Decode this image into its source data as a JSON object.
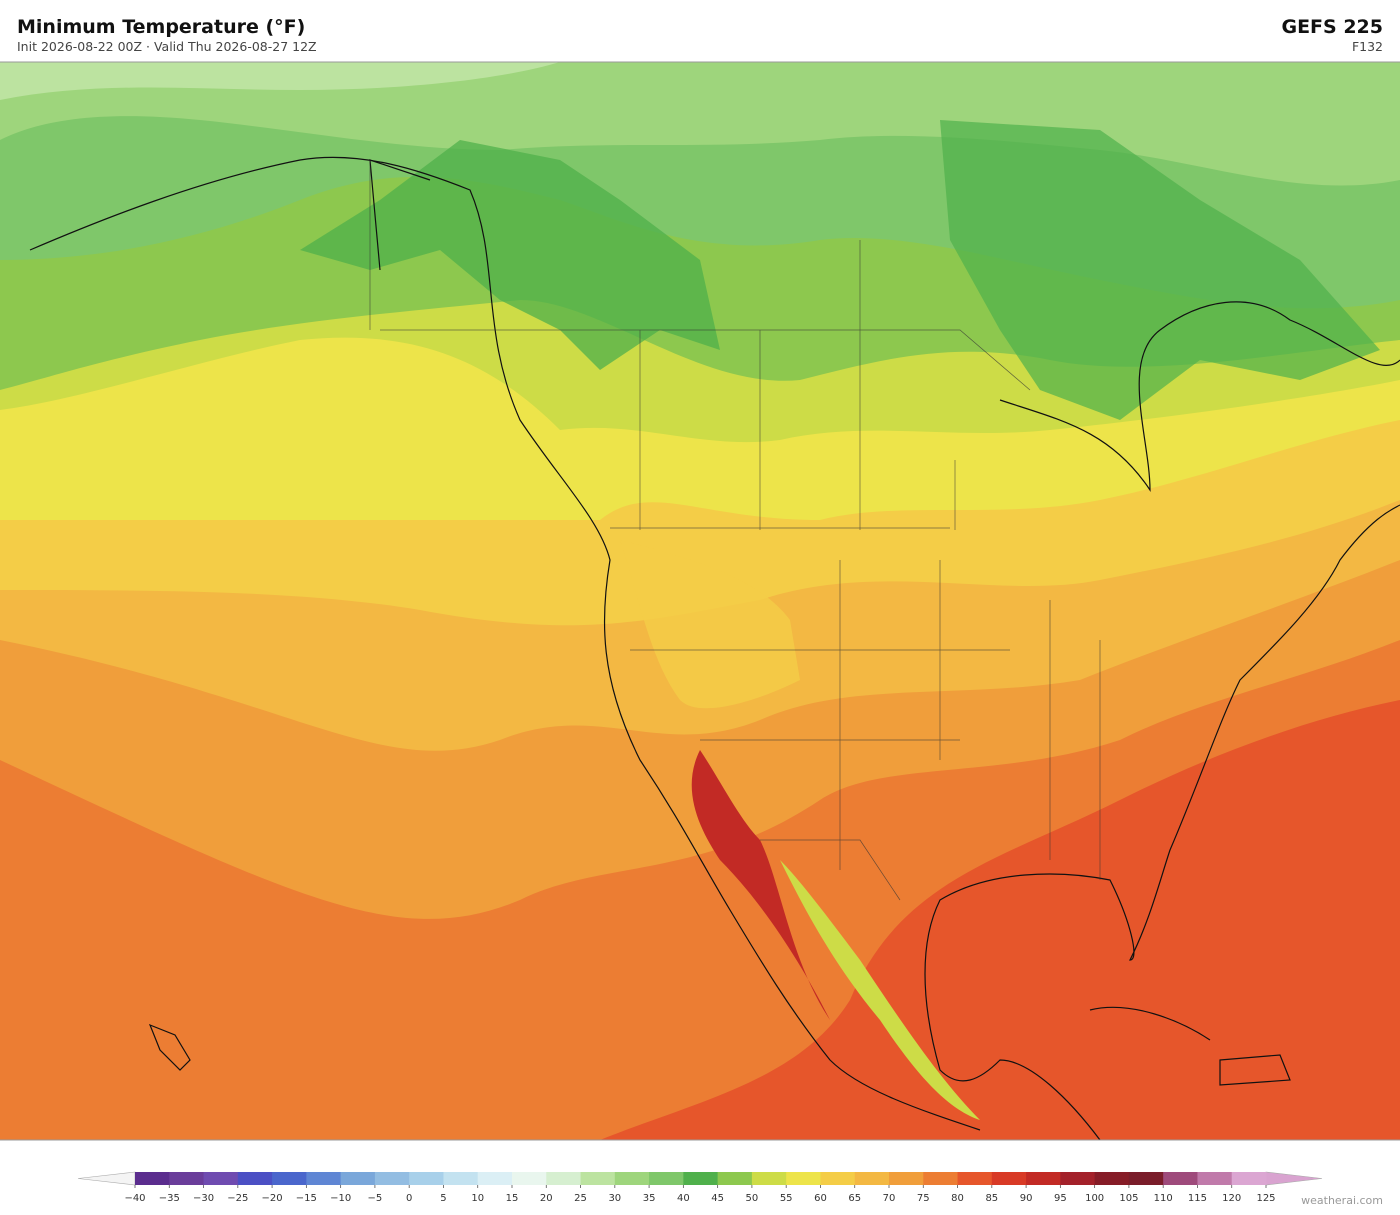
{
  "header": {
    "title": "Minimum Temperature  (°F)",
    "subtitle": "Init 2026-08-22 00Z  ·  Valid Thu 2026-08-27 12Z",
    "model": "GEFS  225",
    "forecast_hour": "F132"
  },
  "colorbar": {
    "ticks": [
      {
        "value": -40,
        "label": "−40"
      },
      {
        "value": -35,
        "label": "−35"
      },
      {
        "value": -30,
        "label": "−30"
      },
      {
        "value": -25,
        "label": "−25"
      },
      {
        "value": -20,
        "label": "−20"
      },
      {
        "value": -15,
        "label": "−15"
      },
      {
        "value": -10,
        "label": "−10"
      },
      {
        "value": -5,
        "label": "−5"
      },
      0,
      5,
      10,
      15,
      20,
      25,
      30,
      35,
      40,
      45,
      50,
      55,
      60,
      65,
      70,
      75,
      80,
      85,
      90,
      95,
      100,
      105,
      110,
      115,
      120,
      125
    ],
    "colors": [
      "#5b2d8e",
      "#6a3d9a",
      "#6f4bb0",
      "#4b4fc4",
      "#4a66cc",
      "#5f86d4",
      "#7aa7da",
      "#93bde2",
      "#a8d0ea",
      "#c3e2f0",
      "#dbeff5",
      "#e9f6ee",
      "#d6efd0",
      "#bce3a0",
      "#9ed57c",
      "#7fc76a",
      "#4fb04b",
      "#8dc84e",
      "#cddc47",
      "#ede44a",
      "#f4cd47",
      "#f3b843",
      "#f09e3b",
      "#ec7d33",
      "#e6562b",
      "#d83a26",
      "#c22a25",
      "#a3212a",
      "#861c27",
      "#7a1d2a",
      "#9e4a7b",
      "#c07aaa",
      "#dba6d2"
    ],
    "under_color": "#f4f4f4",
    "over_color": "#d9a3d0"
  },
  "watermark": "weatherai.com"
}
